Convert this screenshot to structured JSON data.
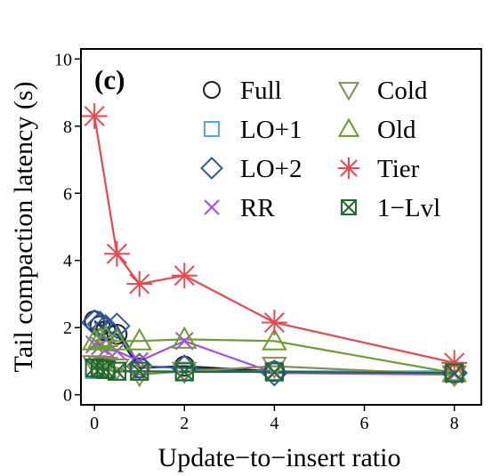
{
  "chart_data": {
    "type": "line",
    "panel_label": "(c)",
    "xlabel": "Update−to−insert ratio",
    "ylabel": "Tail compaction latency (s)",
    "xlim": [
      -0.3,
      8.6
    ],
    "ylim": [
      -0.3,
      10.3
    ],
    "x_ticks": [
      "0",
      "2",
      "4",
      "6",
      "8"
    ],
    "y_ticks": [
      "0",
      "2",
      "4",
      "6",
      "8",
      "10"
    ],
    "legend_position": "top-right",
    "legend_columns": 2,
    "grid": false,
    "series": [
      {
        "name": "Full",
        "marker": "circle",
        "color": "#222222",
        "points": [
          [
            0,
            2.2
          ],
          [
            0.125,
            2.05
          ],
          [
            0.25,
            1.9
          ],
          [
            0.5,
            1.8
          ],
          [
            1,
            0.8
          ],
          [
            2,
            0.85
          ],
          [
            4,
            0.7
          ],
          [
            8,
            0.65
          ]
        ]
      },
      {
        "name": "LO+1",
        "marker": "square",
        "color": "#5aa6dd",
        "points": [
          [
            0,
            0.75
          ],
          [
            0.125,
            0.75
          ],
          [
            0.25,
            0.75
          ],
          [
            0.5,
            0.7
          ],
          [
            1,
            0.7
          ],
          [
            2,
            0.7
          ],
          [
            4,
            0.7
          ],
          [
            8,
            0.7
          ]
        ]
      },
      {
        "name": "LO+2",
        "marker": "diamond",
        "color": "#2d5b9e",
        "points": [
          [
            0,
            2.15
          ],
          [
            0.125,
            2.1
          ],
          [
            0.25,
            2.0
          ],
          [
            0.5,
            2.05
          ],
          [
            1,
            0.85
          ],
          [
            2,
            0.8
          ],
          [
            4,
            0.65
          ],
          [
            8,
            0.65
          ]
        ]
      },
      {
        "name": "RR",
        "marker": "x",
        "color": "#a14ee6",
        "points": [
          [
            0,
            1.5
          ],
          [
            0.125,
            1.45
          ],
          [
            0.25,
            1.35
          ],
          [
            0.5,
            1.3
          ],
          [
            1,
            1.0
          ],
          [
            2,
            1.6
          ],
          [
            4,
            0.65
          ],
          [
            8,
            0.6
          ]
        ]
      },
      {
        "name": "Cold",
        "marker": "triangle-down",
        "color": "#8a8a5a",
        "points": [
          [
            0,
            0.9
          ],
          [
            0.125,
            0.88
          ],
          [
            0.25,
            0.85
          ],
          [
            0.5,
            0.8
          ],
          [
            1,
            0.6
          ],
          [
            2,
            0.7
          ],
          [
            4,
            0.85
          ],
          [
            8,
            0.6
          ]
        ]
      },
      {
        "name": "Old",
        "marker": "triangle-up",
        "color": "#6a9e2a",
        "points": [
          [
            0,
            1.6
          ],
          [
            0.125,
            1.65
          ],
          [
            0.25,
            1.7
          ],
          [
            0.5,
            1.6
          ],
          [
            1,
            1.6
          ],
          [
            2,
            1.65
          ],
          [
            4,
            1.6
          ],
          [
            8,
            0.65
          ]
        ]
      },
      {
        "name": "Tier",
        "marker": "asterisk",
        "color": "#e8484e",
        "points": [
          [
            0,
            8.3
          ],
          [
            0.5,
            4.2
          ],
          [
            1,
            3.3
          ],
          [
            2,
            3.55
          ],
          [
            4,
            2.15
          ],
          [
            8,
            0.95
          ]
        ]
      },
      {
        "name": "1−Lvl",
        "marker": "box-x",
        "color": "#1e6b2a",
        "points": [
          [
            0,
            0.8
          ],
          [
            0.125,
            0.78
          ],
          [
            0.25,
            0.75
          ],
          [
            0.5,
            0.7
          ],
          [
            1,
            0.7
          ],
          [
            2,
            0.68
          ],
          [
            4,
            0.68
          ],
          [
            8,
            0.65
          ]
        ]
      }
    ]
  }
}
